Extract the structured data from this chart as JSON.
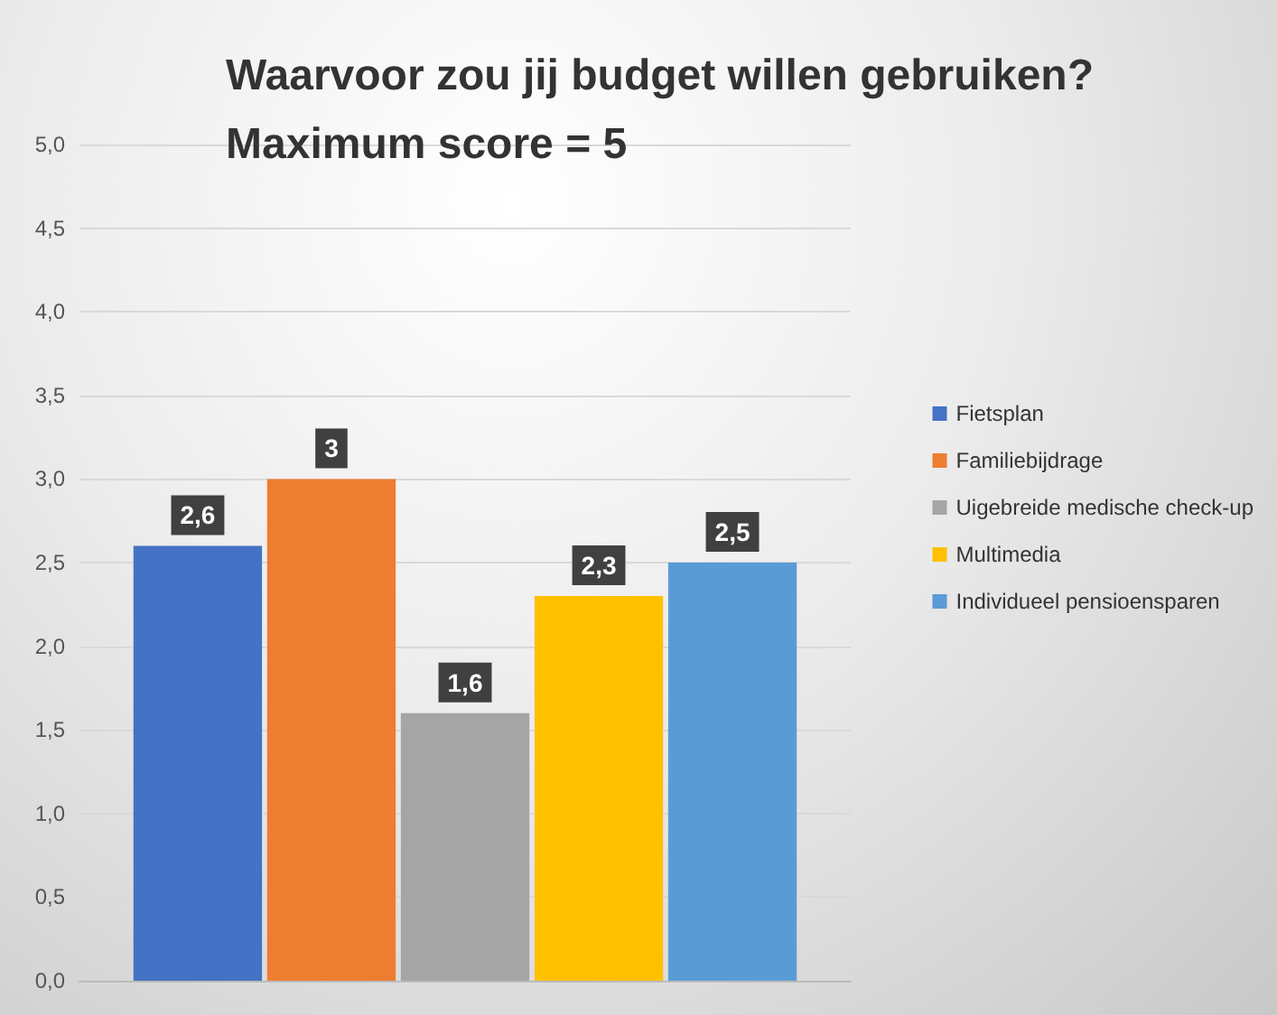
{
  "chart_data": {
    "type": "bar",
    "title": "Waarvoor zou jij budget willen gebruiken?\nMaximum score = 5",
    "categories": [
      null
    ],
    "series": [
      {
        "name": "Fietsplan",
        "color": "#4472c4",
        "values": [
          2.6
        ],
        "value_labels": [
          "2,6"
        ]
      },
      {
        "name": "Familiebijdrage",
        "color": "#ed7d31",
        "values": [
          3
        ],
        "value_labels": [
          "3"
        ]
      },
      {
        "name": "Uigebreide medische check-up",
        "color": "#a5a5a5",
        "values": [
          1.6
        ],
        "value_labels": [
          "1,6"
        ]
      },
      {
        "name": "Multimedia",
        "color": "#ffc000",
        "values": [
          2.3
        ],
        "value_labels": [
          "2,3"
        ]
      },
      {
        "name": "Individueel pensioensparen",
        "color": "#5b9bd5",
        "values": [
          2.5
        ],
        "value_labels": [
          "2,5"
        ]
      }
    ],
    "ylim": [
      0,
      5
    ],
    "yticks": [
      {
        "value": 0,
        "label": "0,0"
      },
      {
        "value": 0.5,
        "label": "0,5"
      },
      {
        "value": 1,
        "label": "1,0"
      },
      {
        "value": 1.5,
        "label": "1,5"
      },
      {
        "value": 2,
        "label": "2,0"
      },
      {
        "value": 2.5,
        "label": "2,5"
      },
      {
        "value": 3,
        "label": "3,0"
      },
      {
        "value": 3.5,
        "label": "3,5"
      },
      {
        "value": 4,
        "label": "4,0"
      },
      {
        "value": 4.5,
        "label": "4,5"
      },
      {
        "value": 5,
        "label": "5,0"
      }
    ],
    "grid": "y",
    "legend": "right"
  }
}
